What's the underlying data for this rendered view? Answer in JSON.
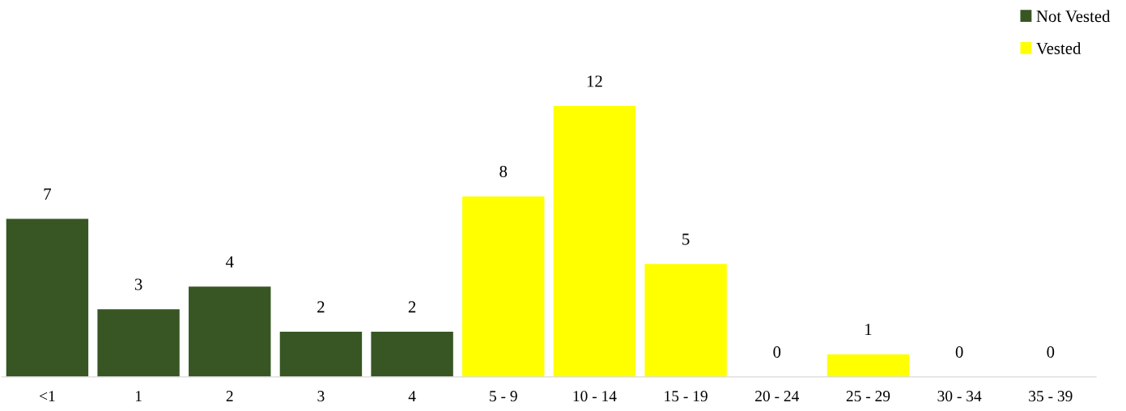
{
  "chart_data": {
    "type": "bar",
    "categories": [
      "<1",
      "1",
      "2",
      "3",
      "4",
      "5 - 9",
      "10 - 14",
      "15 - 19",
      "20 - 24",
      "25 - 29",
      "30 - 34",
      "35 - 39"
    ],
    "series": [
      {
        "name": "Not Vested",
        "color": "#375623",
        "values": [
          7,
          3,
          4,
          2,
          2,
          null,
          null,
          null,
          null,
          null,
          null,
          null
        ]
      },
      {
        "name": "Vested",
        "color": "#ffff00",
        "values": [
          null,
          null,
          null,
          null,
          null,
          8,
          12,
          5,
          0,
          1,
          0,
          0
        ]
      }
    ],
    "data_labels": true,
    "legend": "top right",
    "grid": false
  }
}
